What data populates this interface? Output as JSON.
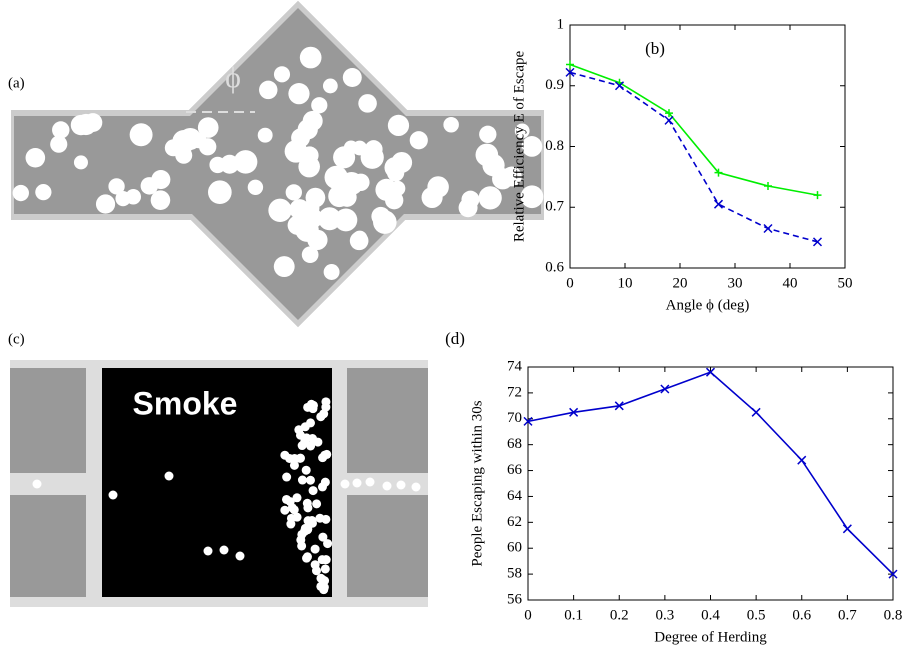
{
  "chart_data": [
    {
      "type": "line",
      "label": "(b)",
      "xlabel": "Angle ϕ (deg)",
      "ylabel": "Relative Efficiency E of Escape",
      "x": [
        0,
        9,
        18,
        27,
        36,
        45
      ],
      "series": [
        {
          "color": "#00ee00",
          "marker": "+",
          "linestyle": "solid",
          "values": [
            0.935,
            0.905,
            0.855,
            0.757,
            0.735,
            0.72
          ]
        },
        {
          "color": "#0000cc",
          "marker": "x",
          "linestyle": "dashed",
          "values": [
            0.922,
            0.9,
            0.843,
            0.705,
            0.665,
            0.643
          ]
        }
      ],
      "xlim": [
        0,
        50
      ],
      "xticks": [
        0,
        10,
        20,
        30,
        40,
        50
      ],
      "ylim": [
        0.6,
        1
      ],
      "yticks": [
        0.6,
        0.7,
        0.8,
        0.9,
        1
      ]
    },
    {
      "type": "line",
      "label": "(d)",
      "xlabel": "Degree of Herding",
      "ylabel": "People Escaping within 30s",
      "x": [
        0,
        0.1,
        0.2,
        0.3,
        0.4,
        0.5,
        0.6,
        0.7,
        0.8
      ],
      "series": [
        {
          "color": "#0000cc",
          "marker": "x",
          "linestyle": "solid",
          "values": [
            69.8,
            70.5,
            71.0,
            72.3,
            73.6,
            70.5,
            66.8,
            61.5,
            58.0
          ]
        }
      ],
      "xlim": [
        0,
        0.8
      ],
      "xticks": [
        0,
        0.1,
        0.2,
        0.3,
        0.4,
        0.5,
        0.6,
        0.7,
        0.8
      ],
      "ylim": [
        56,
        74
      ],
      "yticks": [
        56,
        58,
        60,
        62,
        64,
        66,
        68,
        70,
        72,
        74
      ]
    }
  ],
  "illustrations": {
    "a": {
      "label": "(a)",
      "angle_symbol": "ϕ"
    },
    "c": {
      "label": "(c)",
      "text": "Smoke"
    }
  }
}
